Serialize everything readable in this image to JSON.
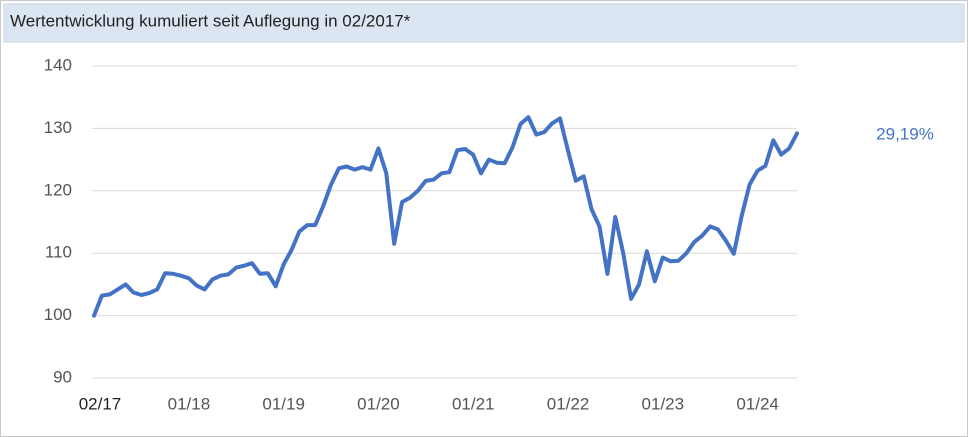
{
  "chart_data": {
    "type": "line",
    "title": "Wertentwicklung kumuliert seit Auflegung in 02/2017*",
    "annotation": "29,19%",
    "categories": [
      "02/17",
      null,
      null,
      null,
      null,
      null,
      null,
      null,
      null,
      null,
      null,
      "01/18",
      null,
      null,
      null,
      null,
      null,
      null,
      null,
      null,
      null,
      null,
      null,
      "01/19",
      null,
      null,
      null,
      null,
      null,
      null,
      null,
      null,
      null,
      null,
      null,
      "01/20",
      null,
      null,
      null,
      null,
      null,
      null,
      null,
      null,
      null,
      null,
      null,
      "01/21",
      null,
      null,
      null,
      null,
      null,
      null,
      null,
      null,
      null,
      null,
      null,
      "01/22",
      null,
      null,
      null,
      null,
      null,
      null,
      null,
      null,
      null,
      null,
      null,
      "01/23",
      null,
      null,
      null,
      null,
      null,
      null,
      null,
      null,
      null,
      null,
      null,
      "01/24",
      null,
      null,
      null,
      null,
      null,
      null
    ],
    "series": [
      {
        "name": "Wertentwicklung",
        "color": "#4472c4",
        "values": [
          100,
          103.2,
          103.4,
          104.2,
          105.0,
          103.7,
          103.3,
          103.6,
          104.2,
          106.8,
          106.7,
          106.4,
          106.0,
          104.8,
          104.2,
          105.8,
          106.4,
          106.6,
          107.7,
          108.0,
          108.4,
          106.7,
          106.8,
          104.7,
          108.2,
          110.5,
          113.5,
          114.5,
          114.5,
          117.5,
          121.0,
          123.6,
          123.9,
          123.4,
          123.8,
          123.4,
          126.8,
          122.8,
          111.5,
          118.2,
          118.9,
          120.0,
          121.6,
          121.8,
          122.8,
          123.0,
          126.5,
          126.7,
          125.8,
          122.8,
          125.0,
          124.5,
          124.4,
          127.0,
          130.7,
          131.8,
          129.0,
          129.4,
          130.8,
          131.6,
          126.5,
          121.6,
          122.3,
          117.0,
          114.3,
          106.7,
          115.8,
          110.0,
          102.7,
          105.0,
          110.3,
          105.5,
          109.3,
          108.7,
          108.8,
          110.0,
          111.8,
          112.8,
          114.3,
          113.8,
          112.0,
          109.9,
          116.0,
          121.0,
          123.2,
          124.0,
          128.1,
          125.8,
          126.8,
          129.2
        ]
      }
    ],
    "ylim": [
      90,
      140
    ],
    "yticks": [
      90,
      100,
      110,
      120,
      130,
      140
    ],
    "grid": true
  }
}
